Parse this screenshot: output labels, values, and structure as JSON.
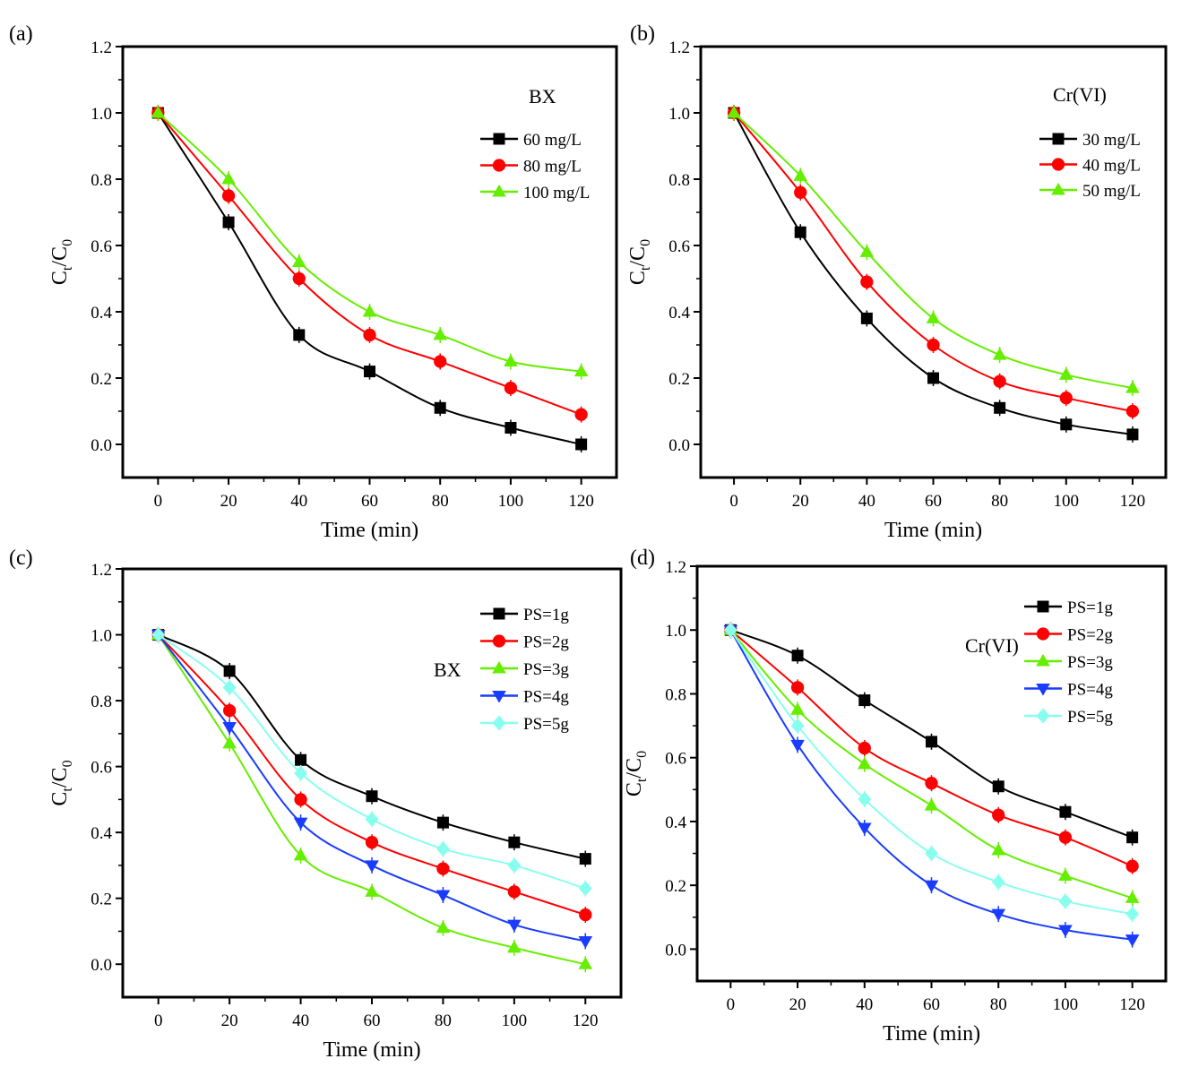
{
  "colors": {
    "black": "#000000",
    "red": "#ff0000",
    "green": "#66ee00",
    "blue": "#1a3cff",
    "cyan": "#88ffee"
  },
  "chart_data": [
    {
      "type": "line",
      "panel": "(a)",
      "annotation": "BX",
      "xlabel": "Time (min)",
      "ylabel": "Ct/C0",
      "xlim": [
        -10,
        130
      ],
      "ylim": [
        -0.1,
        1.2
      ],
      "xticks": [
        0,
        20,
        40,
        60,
        80,
        100,
        120
      ],
      "yticks": [
        0.0,
        0.2,
        0.4,
        0.6,
        0.8,
        1.0,
        1.2
      ],
      "x": [
        0,
        20,
        40,
        60,
        80,
        100,
        120
      ],
      "series": [
        {
          "name": "60 mg/L",
          "marker": "square",
          "color": "#000000",
          "values": [
            1.0,
            0.67,
            0.33,
            0.22,
            0.11,
            0.05,
            0.0
          ]
        },
        {
          "name": "80 mg/L",
          "marker": "circle",
          "color": "#ff0000",
          "values": [
            1.0,
            0.75,
            0.5,
            0.33,
            0.25,
            0.17,
            0.09
          ]
        },
        {
          "name": "100 mg/L",
          "marker": "triangle-up",
          "color": "#66ee00",
          "values": [
            1.0,
            0.8,
            0.55,
            0.4,
            0.33,
            0.25,
            0.22
          ]
        }
      ]
    },
    {
      "type": "line",
      "panel": "(b)",
      "annotation": "Cr(VI)",
      "xlabel": "Time (min)",
      "ylabel": "Ct/C0",
      "xlim": [
        -10,
        130
      ],
      "ylim": [
        -0.1,
        1.2
      ],
      "xticks": [
        0,
        20,
        40,
        60,
        80,
        100,
        120
      ],
      "yticks": [
        0.0,
        0.2,
        0.4,
        0.6,
        0.8,
        1.0,
        1.2
      ],
      "x": [
        0,
        20,
        40,
        60,
        80,
        100,
        120
      ],
      "series": [
        {
          "name": "30 mg/L",
          "marker": "square",
          "color": "#000000",
          "values": [
            1.0,
            0.64,
            0.38,
            0.2,
            0.11,
            0.06,
            0.03
          ]
        },
        {
          "name": "40 mg/L",
          "marker": "circle",
          "color": "#ff0000",
          "values": [
            1.0,
            0.76,
            0.49,
            0.3,
            0.19,
            0.14,
            0.1
          ]
        },
        {
          "name": "50 mg/L",
          "marker": "triangle-up",
          "color": "#66ee00",
          "values": [
            1.0,
            0.81,
            0.58,
            0.38,
            0.27,
            0.21,
            0.17
          ]
        }
      ]
    },
    {
      "type": "line",
      "panel": "(c)",
      "annotation": "BX",
      "xlabel": "Time (min)",
      "ylabel": "Ct/C0",
      "xlim": [
        -10,
        130
      ],
      "ylim": [
        -0.1,
        1.2
      ],
      "xticks": [
        0,
        20,
        40,
        60,
        80,
        100,
        120
      ],
      "yticks": [
        0.0,
        0.2,
        0.4,
        0.6,
        0.8,
        1.0,
        1.2
      ],
      "x": [
        0,
        20,
        40,
        60,
        80,
        100,
        120
      ],
      "series": [
        {
          "name": "PS=1g",
          "marker": "square",
          "color": "#000000",
          "values": [
            1.0,
            0.89,
            0.62,
            0.51,
            0.43,
            0.37,
            0.32
          ]
        },
        {
          "name": "PS=2g",
          "marker": "circle",
          "color": "#ff0000",
          "values": [
            1.0,
            0.77,
            0.5,
            0.37,
            0.29,
            0.22,
            0.15
          ]
        },
        {
          "name": "PS=3g",
          "marker": "triangle-up",
          "color": "#66ee00",
          "values": [
            1.0,
            0.67,
            0.33,
            0.22,
            0.11,
            0.05,
            0.0
          ]
        },
        {
          "name": "PS=4g",
          "marker": "triangle-down",
          "color": "#1a3cff",
          "values": [
            1.0,
            0.72,
            0.43,
            0.3,
            0.21,
            0.12,
            0.07
          ]
        },
        {
          "name": "PS=5g",
          "marker": "diamond",
          "color": "#88ffee",
          "values": [
            1.0,
            0.84,
            0.58,
            0.44,
            0.35,
            0.3,
            0.23
          ]
        }
      ]
    },
    {
      "type": "line",
      "panel": "(d)",
      "annotation": "Cr(VI)",
      "xlabel": "Time (min)",
      "ylabel": "Ct/C0",
      "xlim": [
        -10,
        130
      ],
      "ylim": [
        -0.1,
        1.2
      ],
      "xticks": [
        0,
        20,
        40,
        60,
        80,
        100,
        120
      ],
      "yticks": [
        0.0,
        0.2,
        0.4,
        0.6,
        0.8,
        1.0,
        1.2
      ],
      "x": [
        0,
        20,
        40,
        60,
        80,
        100,
        120
      ],
      "series": [
        {
          "name": "PS=1g",
          "marker": "square",
          "color": "#000000",
          "values": [
            1.0,
            0.92,
            0.78,
            0.65,
            0.51,
            0.43,
            0.35
          ]
        },
        {
          "name": "PS=2g",
          "marker": "circle",
          "color": "#ff0000",
          "values": [
            1.0,
            0.82,
            0.63,
            0.52,
            0.42,
            0.35,
            0.26
          ]
        },
        {
          "name": "PS=3g",
          "marker": "triangle-up",
          "color": "#66ee00",
          "values": [
            1.0,
            0.75,
            0.58,
            0.45,
            0.31,
            0.23,
            0.16
          ]
        },
        {
          "name": "PS=4g",
          "marker": "triangle-down",
          "color": "#1a3cff",
          "values": [
            1.0,
            0.64,
            0.38,
            0.2,
            0.11,
            0.06,
            0.03
          ]
        },
        {
          "name": "PS=5g",
          "marker": "diamond",
          "color": "#88ffee",
          "values": [
            1.0,
            0.7,
            0.47,
            0.3,
            0.21,
            0.15,
            0.11
          ]
        }
      ]
    }
  ]
}
